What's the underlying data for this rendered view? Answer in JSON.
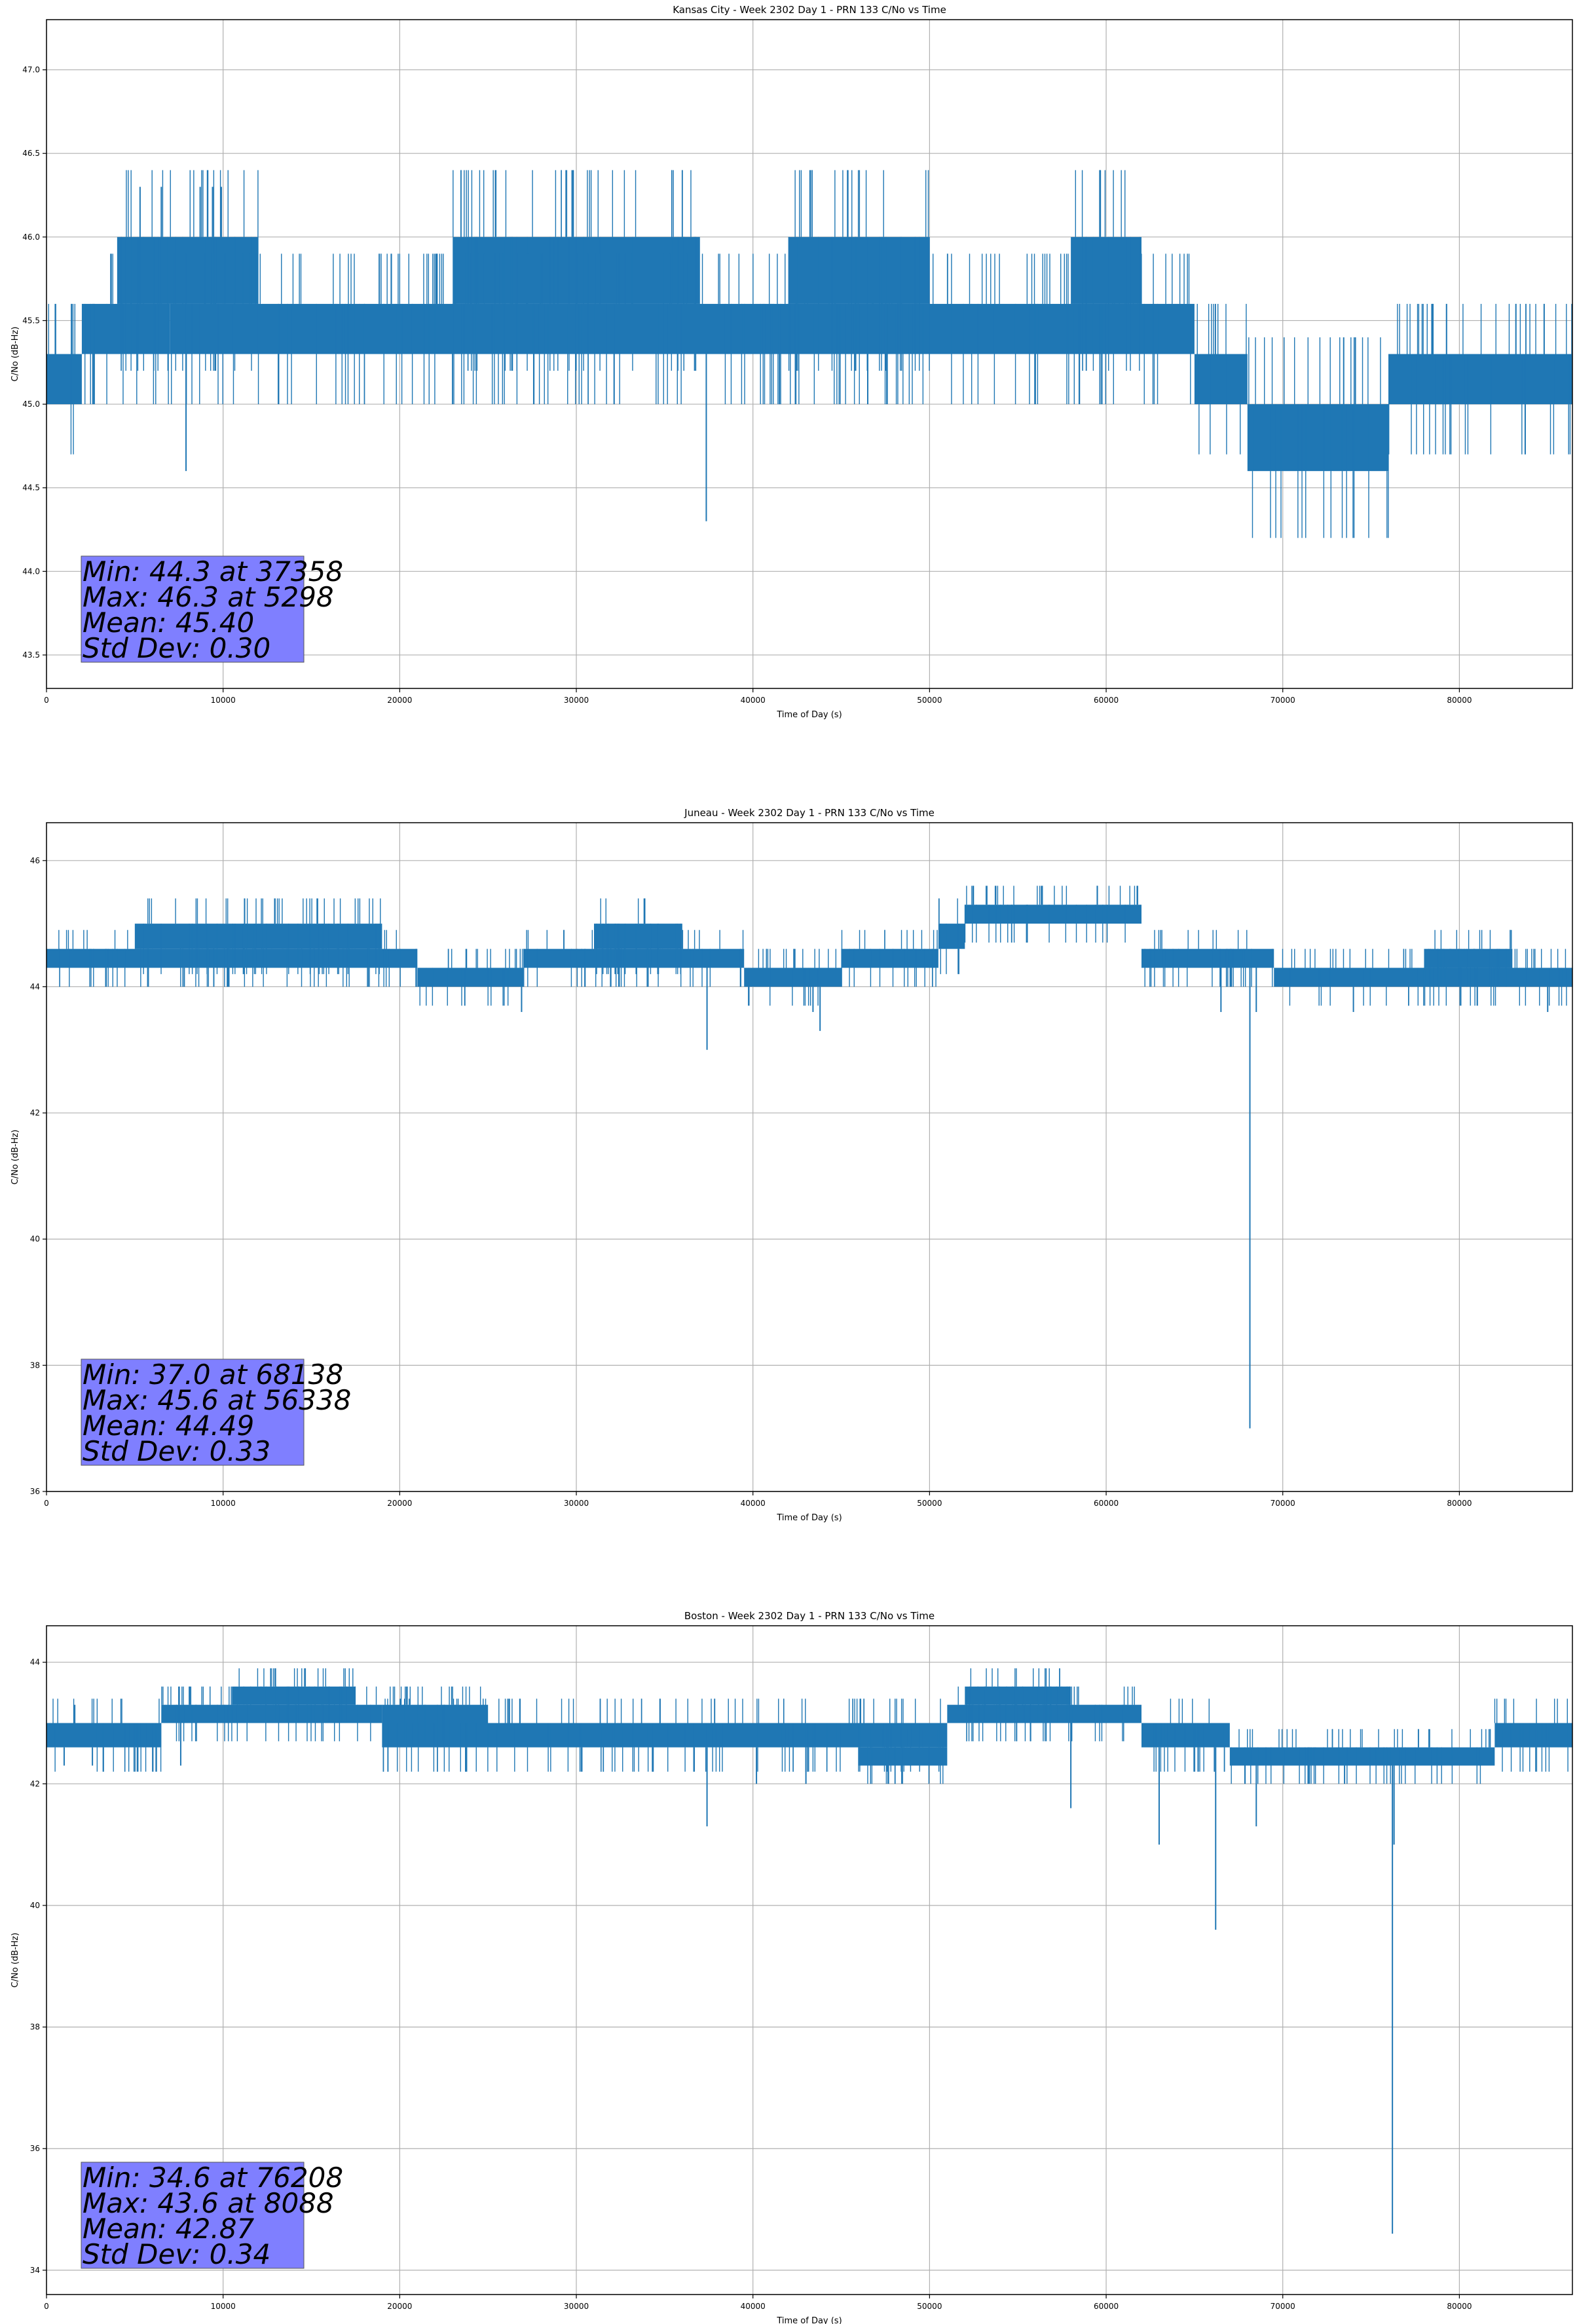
{
  "chart_data": [
    {
      "type": "line",
      "title": "Kansas City - Week 2302 Day 1 - PRN 133 C/No vs Time",
      "xlabel": "Time of Day (s)",
      "ylabel": "C/No (dB-Hz)",
      "xlim": [
        0,
        86400
      ],
      "ylim": [
        43.3,
        47.3
      ],
      "xticks": [
        0,
        10000,
        20000,
        30000,
        40000,
        50000,
        60000,
        70000,
        80000
      ],
      "yticks": [
        43.5,
        44.0,
        44.5,
        45.0,
        45.5,
        46.0,
        46.5,
        47.0
      ],
      "ytick_labels": [
        "43.5",
        "44.0",
        "44.5",
        "45.0",
        "45.5",
        "46.0",
        "46.5",
        "47.0"
      ],
      "grid": true,
      "color": "#1f77b4",
      "segments": [
        {
          "x": [
            0,
            2000
          ],
          "low": 45.0,
          "high": 45.3
        },
        {
          "x": [
            2000,
            7000
          ],
          "low": 45.3,
          "high": 45.6
        },
        {
          "x": [
            4000,
            12000
          ],
          "low": 45.6,
          "high": 46.0
        },
        {
          "x": [
            7000,
            23000
          ],
          "low": 45.3,
          "high": 45.6
        },
        {
          "x": [
            23000,
            37000
          ],
          "low": 45.6,
          "high": 46.0
        },
        {
          "x": [
            23000,
            56000
          ],
          "low": 45.3,
          "high": 45.6
        },
        {
          "x": [
            42000,
            50000
          ],
          "low": 45.6,
          "high": 46.0
        },
        {
          "x": [
            56000,
            65000
          ],
          "low": 45.3,
          "high": 45.6
        },
        {
          "x": [
            58000,
            62000
          ],
          "low": 45.6,
          "high": 46.0
        },
        {
          "x": [
            65000,
            68000
          ],
          "low": 45.0,
          "high": 45.3
        },
        {
          "x": [
            68000,
            76000
          ],
          "low": 44.6,
          "high": 45.0
        },
        {
          "x": [
            76000,
            86400
          ],
          "low": 45.0,
          "high": 45.3
        }
      ],
      "spikes": [
        {
          "x": 5298,
          "y": 46.3
        },
        {
          "x": 6500,
          "y": 46.3
        },
        {
          "x": 8700,
          "y": 46.3
        },
        {
          "x": 9400,
          "y": 46.3
        },
        {
          "x": 9900,
          "y": 46.3
        },
        {
          "x": 7900,
          "y": 44.6
        },
        {
          "x": 37358,
          "y": 44.3
        },
        {
          "x": 41500,
          "y": 45.0
        },
        {
          "x": 46500,
          "y": 45.0
        },
        {
          "x": 83200,
          "y": 45.6
        },
        {
          "x": 84800,
          "y": 45.6
        }
      ],
      "stats": [
        "Min: 44.3 at 37358",
        "Max: 46.3 at 5298",
        "Mean: 45.40",
        "Std Dev: 0.30"
      ]
    },
    {
      "type": "line",
      "title": "Juneau - Week 2302 Day 1 - PRN 133 C/No vs Time",
      "xlabel": "Time of Day (s)",
      "ylabel": "C/No (dB-Hz)",
      "xlim": [
        0,
        86400
      ],
      "ylim": [
        36,
        46.6
      ],
      "xticks": [
        0,
        10000,
        20000,
        30000,
        40000,
        50000,
        60000,
        70000,
        80000
      ],
      "yticks": [
        36,
        38,
        40,
        42,
        44,
        46
      ],
      "ytick_labels": [
        "36",
        "38",
        "40",
        "42",
        "44",
        "46"
      ],
      "grid": true,
      "color": "#1f77b4",
      "segments": [
        {
          "x": [
            0,
            21000
          ],
          "low": 44.3,
          "high": 44.6
        },
        {
          "x": [
            5000,
            19000
          ],
          "low": 44.6,
          "high": 45.0
        },
        {
          "x": [
            21000,
            27000
          ],
          "low": 44.0,
          "high": 44.3
        },
        {
          "x": [
            27000,
            39500
          ],
          "low": 44.3,
          "high": 44.6
        },
        {
          "x": [
            31000,
            36000
          ],
          "low": 44.6,
          "high": 45.0
        },
        {
          "x": [
            39500,
            45000
          ],
          "low": 44.0,
          "high": 44.3
        },
        {
          "x": [
            45000,
            50500
          ],
          "low": 44.3,
          "high": 44.6
        },
        {
          "x": [
            50500,
            52000
          ],
          "low": 44.6,
          "high": 45.0
        },
        {
          "x": [
            52000,
            62000
          ],
          "low": 45.0,
          "high": 45.3
        },
        {
          "x": [
            62000,
            69500
          ],
          "low": 44.3,
          "high": 44.6
        },
        {
          "x": [
            69500,
            86400
          ],
          "low": 44.0,
          "high": 44.3
        },
        {
          "x": [
            78000,
            83000
          ],
          "low": 44.3,
          "high": 44.6
        }
      ],
      "spikes": [
        {
          "x": 7800,
          "y": 44.0
        },
        {
          "x": 26900,
          "y": 43.6
        },
        {
          "x": 37400,
          "y": 43.0
        },
        {
          "x": 43400,
          "y": 43.6
        },
        {
          "x": 43800,
          "y": 43.3
        },
        {
          "x": 56338,
          "y": 45.6
        },
        {
          "x": 59500,
          "y": 45.6
        },
        {
          "x": 68138,
          "y": 37.0
        },
        {
          "x": 68500,
          "y": 43.6
        },
        {
          "x": 66500,
          "y": 43.6
        },
        {
          "x": 74000,
          "y": 43.6
        },
        {
          "x": 85000,
          "y": 43.6
        }
      ],
      "stats": [
        "Min: 37.0 at 68138",
        "Max: 45.6 at 56338",
        "Mean: 44.49",
        "Std Dev: 0.33"
      ]
    },
    {
      "type": "line",
      "title": "Boston - Week 2302 Day 1 - PRN 133 C/No vs Time",
      "xlabel": "Time of Day (s)",
      "ylabel": "C/No (dB-Hz)",
      "xlim": [
        0,
        86400
      ],
      "ylim": [
        33.6,
        44.6
      ],
      "xticks": [
        0,
        10000,
        20000,
        30000,
        40000,
        50000,
        60000,
        70000,
        80000
      ],
      "yticks": [
        34,
        36,
        38,
        40,
        42,
        44
      ],
      "ytick_labels": [
        "34",
        "36",
        "38",
        "40",
        "42",
        "44"
      ],
      "grid": true,
      "color": "#1f77b4",
      "segments": [
        {
          "x": [
            0,
            6500
          ],
          "low": 42.6,
          "high": 43.0
        },
        {
          "x": [
            6500,
            19000
          ],
          "low": 43.0,
          "high": 43.3
        },
        {
          "x": [
            10500,
            17500
          ],
          "low": 43.3,
          "high": 43.6
        },
        {
          "x": [
            19000,
            51000
          ],
          "low": 42.6,
          "high": 43.0
        },
        {
          "x": [
            19000,
            25000
          ],
          "low": 43.0,
          "high": 43.3
        },
        {
          "x": [
            46000,
            51000
          ],
          "low": 42.3,
          "high": 42.6
        },
        {
          "x": [
            51000,
            62000
          ],
          "low": 43.0,
          "high": 43.3
        },
        {
          "x": [
            52000,
            58000
          ],
          "low": 43.3,
          "high": 43.6
        },
        {
          "x": [
            62000,
            67000
          ],
          "low": 42.6,
          "high": 43.0
        },
        {
          "x": [
            67000,
            82000
          ],
          "low": 42.3,
          "high": 42.6
        },
        {
          "x": [
            82000,
            86400
          ],
          "low": 42.6,
          "high": 43.0
        }
      ],
      "spikes": [
        {
          "x": 1000,
          "y": 42.3
        },
        {
          "x": 1600,
          "y": 43.3
        },
        {
          "x": 2600,
          "y": 42.3
        },
        {
          "x": 7600,
          "y": 42.3
        },
        {
          "x": 8088,
          "y": 43.6
        },
        {
          "x": 37400,
          "y": 41.3
        },
        {
          "x": 40200,
          "y": 42.0
        },
        {
          "x": 43000,
          "y": 42.0
        },
        {
          "x": 58000,
          "y": 41.6
        },
        {
          "x": 63000,
          "y": 41.0
        },
        {
          "x": 66200,
          "y": 39.6
        },
        {
          "x": 68500,
          "y": 41.3
        },
        {
          "x": 76208,
          "y": 34.6
        },
        {
          "x": 76300,
          "y": 41.0
        },
        {
          "x": 73500,
          "y": 42.0
        }
      ],
      "stats": [
        "Min: 34.6 at 76208",
        "Max: 43.6 at 8088",
        "Mean: 42.87",
        "Std Dev: 0.34"
      ]
    }
  ]
}
